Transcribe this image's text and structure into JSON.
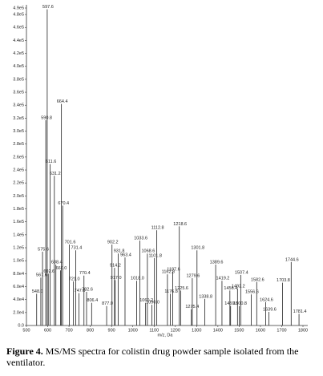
{
  "chart_data": {
    "type": "spectrum",
    "x_axis_label": "m/z, Da",
    "color": "#222222",
    "xlim": [
      500,
      1800
    ],
    "xticks": [
      500,
      600,
      700,
      800,
      900,
      1000,
      1100,
      1200,
      1300,
      1400,
      1500,
      1600,
      1700,
      1800
    ],
    "ylim": [
      0,
      490000
    ],
    "yticks": [
      {
        "value": 0,
        "label": "0.0"
      },
      {
        "value": 20000,
        "label": "2.0e4"
      },
      {
        "value": 40000,
        "label": "4.0e4"
      },
      {
        "value": 60000,
        "label": "6.0e4"
      },
      {
        "value": 80000,
        "label": "8.0e4"
      },
      {
        "value": 100000,
        "label": "1.0e5"
      },
      {
        "value": 120000,
        "label": "1.2e5"
      },
      {
        "value": 140000,
        "label": "1.4e5"
      },
      {
        "value": 160000,
        "label": "1.6e5"
      },
      {
        "value": 180000,
        "label": "1.8e5"
      },
      {
        "value": 200000,
        "label": "2.0e5"
      },
      {
        "value": 220000,
        "label": "2.2e5"
      },
      {
        "value": 240000,
        "label": "2.4e5"
      },
      {
        "value": 260000,
        "label": "2.6e5"
      },
      {
        "value": 280000,
        "label": "2.8e5"
      },
      {
        "value": 300000,
        "label": "3.0e5"
      },
      {
        "value": 320000,
        "label": "3.2e5"
      },
      {
        "value": 340000,
        "label": "3.4e5"
      },
      {
        "value": 360000,
        "label": "3.6e5"
      },
      {
        "value": 380000,
        "label": "3.8e5"
      },
      {
        "value": 400000,
        "label": "4.0e5"
      },
      {
        "value": 420000,
        "label": "4.2e5"
      },
      {
        "value": 440000,
        "label": "4.4e5"
      },
      {
        "value": 460000,
        "label": "4.6e5"
      },
      {
        "value": 480000,
        "label": "4.8e5"
      },
      {
        "value": 490000,
        "label": "4.9e5"
      }
    ],
    "x": [
      548.0,
      567.6,
      575.6,
      590.8,
      597.6,
      602.6,
      611.6,
      631.2,
      638.4,
      660.0,
      664.4,
      670.4,
      701.6,
      721.0,
      731.4,
      747.0,
      770.4,
      782.6,
      806.4,
      877.0,
      902.2,
      914.2,
      917.0,
      931.8,
      963.4,
      1018.0,
      1033.6,
      1060.2,
      1068.6,
      1090.0,
      1101.8,
      1112.8,
      1162.8,
      1176.8,
      1187.6,
      1218.6,
      1225.6,
      1275.4,
      1279.6,
      1301.8,
      1338.8,
      1389.6,
      1419.2,
      1456.4,
      1459.8,
      1492.2,
      1500.8,
      1507.4,
      1556.6,
      1582.6,
      1624.6,
      1639.6,
      1703.8,
      1744.6,
      1781.4
    ],
    "x_labels": [
      "548.0",
      "567.6",
      "575.6",
      "590.8",
      "597.6",
      "602.6",
      "611.6",
      "631.2",
      "638.4",
      "660.0",
      "664.4",
      "670.4",
      "701.6",
      "721.0",
      "731.4",
      "747.0",
      "770.4",
      "782.6",
      "806.4",
      "877.0",
      "902.2",
      "914.2",
      "917.0",
      "931.8",
      "963.4",
      "1018.0",
      "1033.6",
      "1060.2",
      "1068.6",
      "1090.0",
      "1101.8",
      "1112.8",
      "1162.8",
      "1176.8",
      "1187.6",
      "1218.6",
      "1225.6",
      "1275.4",
      "1279.6",
      "1301.8",
      "1338.8",
      "1389.6",
      "1419.2",
      "1456.4",
      "1459.8",
      "1492.2",
      "1500.8",
      "1507.4",
      "1556.6",
      "1582.6",
      "1624.6",
      "1639.6",
      "1703.8",
      "1744.6",
      "1781.4"
    ],
    "values": [
      49000,
      74000,
      114000,
      317000,
      488000,
      80000,
      249000,
      231000,
      94000,
      85000,
      342000,
      185000,
      125000,
      68000,
      116000,
      50000,
      77000,
      52000,
      35000,
      30000,
      125000,
      89000,
      70000,
      111000,
      105000,
      69000,
      131000,
      35000,
      111000,
      32000,
      104000,
      147000,
      79000,
      49000,
      83000,
      153000,
      54000,
      25000,
      73000,
      116000,
      41000,
      94000,
      69000,
      54000,
      30000,
      57000,
      30000,
      78000,
      48000,
      67000,
      36000,
      21000,
      66000,
      98000,
      18000
    ]
  },
  "caption": {
    "label": "Figure 4.",
    "text": "MS/MS spectra for colistin drug powder sample  isolated from the ventilator."
  }
}
